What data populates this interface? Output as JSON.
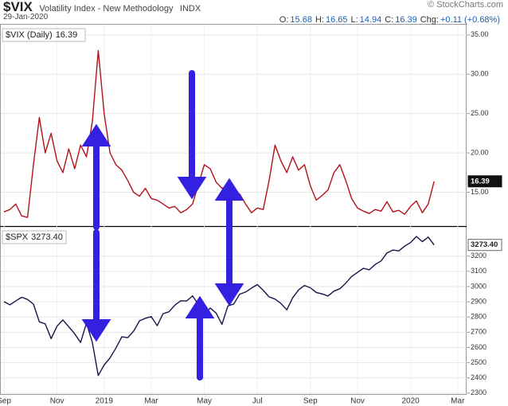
{
  "chart_data": {
    "type": "line",
    "symbol": "$VIX",
    "title": "Volatility Index - New Methodology",
    "exchange": "INDX",
    "date": "29-Jan-2020",
    "quote": [
      {
        "label": "O:",
        "value": 15.68
      },
      {
        "label": "H:",
        "value": 16.65
      },
      {
        "label": "L:",
        "value": 14.94
      },
      {
        "label": "C:",
        "value": 16.39
      },
      {
        "label": "Chg:",
        "value": "+0.11 (+0.68%)"
      }
    ],
    "credit": "© StockCharts.com",
    "categories": [
      "Sep",
      null,
      null,
      null,
      null,
      null,
      null,
      null,
      null,
      "Nov",
      null,
      null,
      null,
      null,
      null,
      null,
      null,
      "2019",
      null,
      null,
      null,
      null,
      null,
      null,
      null,
      "Mar",
      null,
      null,
      null,
      null,
      null,
      null,
      null,
      null,
      "May",
      null,
      null,
      null,
      null,
      null,
      null,
      null,
      null,
      "Jul",
      null,
      null,
      null,
      null,
      null,
      null,
      null,
      null,
      "Sep",
      null,
      null,
      null,
      null,
      null,
      null,
      null,
      "Nov",
      null,
      null,
      null,
      null,
      null,
      null,
      null,
      null,
      "2020",
      null,
      null,
      null,
      null,
      null,
      null,
      null,
      "Mar",
      null
    ],
    "ylim": [
      10.7,
      36.3
    ],
    "yticks": [
      {
        "value": 15,
        "label": "15.00"
      },
      {
        "value": 20,
        "label": "20.00"
      },
      {
        "value": 25,
        "label": "25.00"
      },
      {
        "value": 30,
        "label": "30.00"
      },
      {
        "value": 35,
        "label": "35.00"
      }
    ],
    "y2lim": [
      2294,
      3392
    ],
    "y2ticks": [
      2300,
      2400,
      2500,
      2600,
      2700,
      2800,
      2900,
      3000,
      3100,
      3200
    ],
    "grid": true,
    "series": [
      {
        "name": "$VIX (Daily)",
        "color": "#b3121b",
        "values": [
          12.5,
          12.8,
          13.5,
          12.0,
          11.8,
          18.5,
          24.5,
          20.0,
          22.5,
          19.0,
          17.5,
          20.5,
          18.0,
          21.0,
          19.5,
          24.0,
          33.0,
          25.0,
          20.0,
          18.5,
          17.8,
          16.5,
          15.0,
          14.5,
          15.5,
          14.2,
          14.0,
          13.5,
          13.0,
          13.2,
          12.4,
          12.8,
          13.5,
          16.0,
          18.5,
          18.0,
          16.3,
          15.5,
          15.9,
          14.5,
          14.8,
          13.5,
          12.4,
          13.0,
          12.8,
          16.5,
          21.0,
          19.0,
          17.5,
          19.5,
          17.8,
          18.5,
          15.8,
          14.0,
          14.6,
          15.3,
          17.5,
          18.5,
          16.5,
          14.2,
          13.0,
          12.6,
          12.3,
          12.8,
          12.6,
          13.8,
          12.5,
          12.7,
          12.2,
          13.2,
          13.9,
          12.4,
          13.5,
          16.39,
          null,
          null,
          null,
          null,
          null
        ]
      },
      {
        "name": "$SPX",
        "color": "#16164d",
        "axis": "y2",
        "values": [
          2901,
          2880,
          2905,
          2930,
          2915,
          2885,
          2768,
          2755,
          2658,
          2740,
          2781,
          2736,
          2690,
          2633,
          2760,
          2633,
          2416,
          2485,
          2532,
          2596,
          2670,
          2664,
          2707,
          2775,
          2792,
          2803,
          2743,
          2822,
          2834,
          2878,
          2907,
          2905,
          2939,
          2881,
          2812,
          2859,
          2826,
          2752,
          2873,
          2886,
          2950,
          2964,
          2990,
          3013,
          2976,
          2932,
          2918,
          2889,
          2847,
          2926,
          2978,
          3007,
          2992,
          2961,
          2952,
          2938,
          2970,
          2986,
          3022,
          3066,
          3093,
          3120,
          3110,
          3145,
          3168,
          3221,
          3240,
          3234,
          3265,
          3289,
          3329,
          3295,
          3325,
          3273.4,
          null,
          null,
          null,
          null,
          null
        ],
        "value_labels": [
          null,
          null,
          null,
          null,
          null,
          null,
          null,
          null,
          null,
          null,
          null,
          null,
          null,
          null,
          null,
          null,
          null,
          null,
          null,
          null,
          null,
          null,
          null,
          null,
          null,
          null,
          null,
          null,
          null,
          null,
          null,
          null,
          null,
          null,
          null,
          null,
          null,
          null,
          null,
          null,
          null,
          null,
          null,
          null,
          null,
          null,
          null,
          null,
          null,
          null,
          null,
          null,
          null,
          null,
          null,
          null,
          null,
          null,
          null,
          null,
          null,
          null,
          null,
          null,
          null,
          null,
          null,
          null,
          null,
          null,
          null,
          null,
          null,
          "3273.40",
          null,
          null,
          null,
          null,
          null
        ]
      }
    ]
  }
}
